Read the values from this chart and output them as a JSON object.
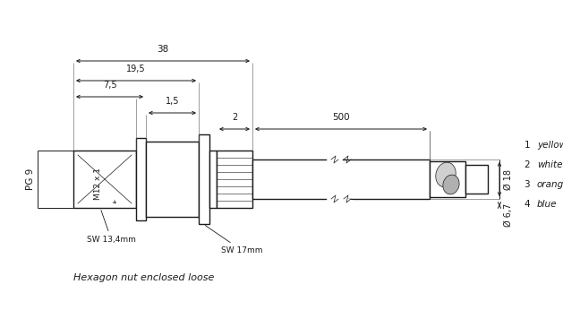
{
  "bg_color": "#ffffff",
  "line_color": "#1a1a1a",
  "fig_width": 6.29,
  "fig_height": 3.75,
  "labels": {
    "dim_38": "38",
    "dim_19_5": "19,5",
    "dim_7_5": "7,5",
    "dim_1_5": "1,5",
    "dim_2": "2",
    "dim_500": "500",
    "dim_18": "Ø 18",
    "dim_6_7": "Ø 6,7",
    "pg9": "PG 9",
    "m12": "M12 x 1",
    "sw134": "SW 13,4mm",
    "sw17": "SW 17mm",
    "note": "Hexagon nut enclosed loose",
    "c1": "1",
    "c1t": "yellow",
    "c2": "2",
    "c2t": "white",
    "c3": "3",
    "c3t": "orange",
    "c4": "4",
    "c4t": "blue"
  }
}
